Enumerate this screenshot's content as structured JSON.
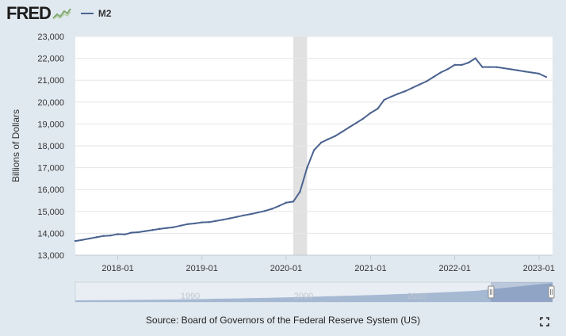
{
  "header": {
    "logo_text": "FRED",
    "legend_label": "M2"
  },
  "colors": {
    "background": "#e1e9f0",
    "plot_bg": "#ffffff",
    "line": "#4b6390",
    "recession": "#e1e1e1",
    "navigator": "#9fb3cf"
  },
  "chart_data": {
    "type": "line",
    "ylabel": "Billions of Dollars",
    "ylim": [
      13000,
      23000
    ],
    "yticks": [
      13000,
      14000,
      15000,
      16000,
      17000,
      18000,
      19000,
      20000,
      21000,
      22000,
      23000
    ],
    "ytick_labels": [
      "13,000",
      "14,000",
      "15,000",
      "16,000",
      "17,000",
      "18,000",
      "19,000",
      "20,000",
      "21,000",
      "22,000",
      "23,000"
    ],
    "xlim": [
      "2017-07-01",
      "2023-03-01"
    ],
    "xticks": [
      "2018-01-01",
      "2019-01-01",
      "2020-01-01",
      "2021-01-01",
      "2022-01-01",
      "2023-01-01"
    ],
    "xtick_labels": [
      "2018-01",
      "2019-01",
      "2020-01",
      "2021-01",
      "2022-01",
      "2023-01"
    ],
    "recession": [
      "2020-02-01",
      "2020-04-01"
    ],
    "grid": "horizontal",
    "legend": "top-left",
    "series": [
      {
        "name": "M2",
        "x": [
          "2017-07-01",
          "2017-08-01",
          "2017-09-01",
          "2017-10-01",
          "2017-11-01",
          "2017-12-01",
          "2018-01-01",
          "2018-02-01",
          "2018-03-01",
          "2018-04-01",
          "2018-05-01",
          "2018-06-01",
          "2018-07-01",
          "2018-08-01",
          "2018-09-01",
          "2018-10-01",
          "2018-11-01",
          "2018-12-01",
          "2019-01-01",
          "2019-02-01",
          "2019-03-01",
          "2019-04-01",
          "2019-05-01",
          "2019-06-01",
          "2019-07-01",
          "2019-08-01",
          "2019-09-01",
          "2019-10-01",
          "2019-11-01",
          "2019-12-01",
          "2020-01-01",
          "2020-02-01",
          "2020-03-01",
          "2020-04-01",
          "2020-05-01",
          "2020-06-01",
          "2020-07-01",
          "2020-08-01",
          "2020-09-01",
          "2020-10-01",
          "2020-11-01",
          "2020-12-01",
          "2021-01-01",
          "2021-02-01",
          "2021-03-01",
          "2021-04-01",
          "2021-05-01",
          "2021-06-01",
          "2021-07-01",
          "2021-08-01",
          "2021-09-01",
          "2021-10-01",
          "2021-11-01",
          "2021-12-01",
          "2022-01-01",
          "2022-02-01",
          "2022-03-01",
          "2022-04-01",
          "2022-05-01",
          "2022-06-01",
          "2022-07-01",
          "2022-08-01",
          "2022-09-01",
          "2022-10-01",
          "2022-11-01",
          "2022-12-01",
          "2023-01-01",
          "2023-02-01"
        ],
        "values": [
          13650,
          13700,
          13760,
          13820,
          13880,
          13900,
          13960,
          13950,
          14030,
          14050,
          14100,
          14150,
          14200,
          14240,
          14280,
          14350,
          14420,
          14450,
          14500,
          14510,
          14560,
          14620,
          14680,
          14750,
          14820,
          14880,
          14950,
          15020,
          15120,
          15250,
          15400,
          15450,
          15900,
          17000,
          17800,
          18150,
          18300,
          18450,
          18650,
          18850,
          19050,
          19250,
          19500,
          19700,
          20100,
          20250,
          20380,
          20500,
          20650,
          20800,
          20950,
          21150,
          21350,
          21500,
          21700,
          21700,
          21800,
          22000,
          21600,
          21600,
          21600,
          21550,
          21500,
          21450,
          21400,
          21350,
          21300,
          21150
        ]
      }
    ]
  },
  "navigator": {
    "labels": [
      "1990",
      "2000",
      "2010"
    ]
  },
  "footer": {
    "source": "Source: Board of Governors of the Federal Reserve System (US)"
  }
}
